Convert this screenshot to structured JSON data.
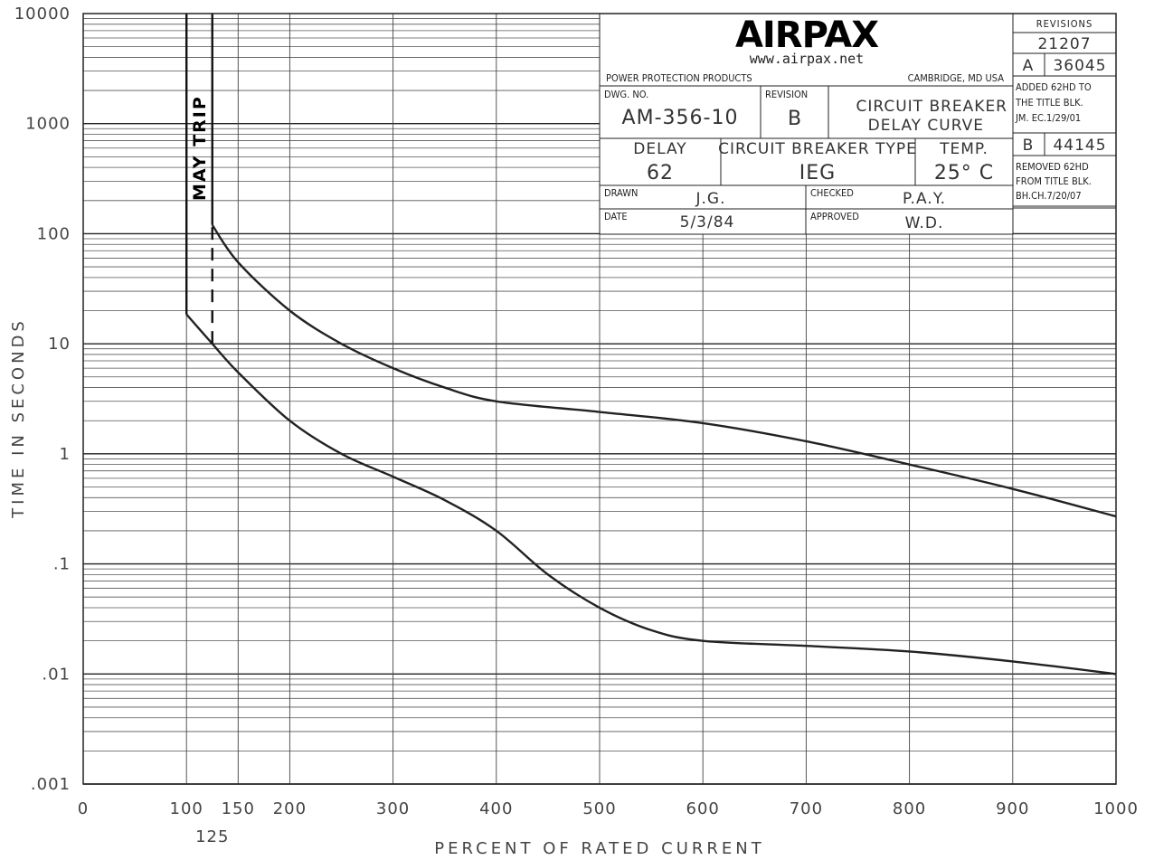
{
  "chart_data": {
    "type": "line",
    "xlabel": "PERCENT OF RATED CURRENT",
    "ylabel": "TIME IN SECONDS",
    "xlim": [
      0,
      1000
    ],
    "ylim": [
      0.001,
      10000
    ],
    "yscale": "log",
    "grid": true,
    "x_ticks": [
      "0",
      "100",
      "150",
      "200",
      "300",
      "400",
      "500",
      "600",
      "700",
      "800",
      "900",
      "1000"
    ],
    "x_tick_values": [
      0,
      100,
      150,
      200,
      300,
      400,
      500,
      600,
      700,
      800,
      900,
      1000
    ],
    "x_extra_tick_label": "125",
    "x_extra_tick_value": 125,
    "y_ticks": [
      "10000",
      "1000",
      "100",
      "10",
      "1",
      ".1",
      ".01",
      ".001"
    ],
    "y_tick_values": [
      10000,
      1000,
      100,
      10,
      1,
      0.1,
      0.01,
      0.001
    ],
    "annotation": "MAY TRIP",
    "series": [
      {
        "points": [
          [
            125,
            120
          ],
          [
            150,
            55
          ],
          [
            200,
            20
          ],
          [
            250,
            10
          ],
          [
            300,
            6
          ],
          [
            350,
            4
          ],
          [
            400,
            3
          ],
          [
            500,
            2.4
          ],
          [
            600,
            1.9
          ],
          [
            700,
            1.3
          ],
          [
            800,
            0.8
          ],
          [
            900,
            0.48
          ],
          [
            1000,
            0.27
          ]
        ]
      },
      {
        "points": [
          [
            100,
            18.5
          ],
          [
            125,
            10
          ],
          [
            150,
            5.5
          ],
          [
            200,
            2
          ],
          [
            250,
            1
          ],
          [
            300,
            0.62
          ],
          [
            350,
            0.38
          ],
          [
            400,
            0.2
          ],
          [
            450,
            0.08
          ],
          [
            500,
            0.04
          ],
          [
            550,
            0.025
          ],
          [
            600,
            0.02
          ],
          [
            700,
            0.018
          ],
          [
            800,
            0.016
          ],
          [
            900,
            0.013
          ],
          [
            1000,
            0.01
          ]
        ]
      }
    ],
    "may_trip_lines": [
      {
        "x": 100,
        "y_from": 18.5,
        "y_to": 10000
      },
      {
        "x": 125,
        "y_from": 120,
        "y_to": 10000
      }
    ],
    "dashed_segment": {
      "x": 125,
      "y_from": 10,
      "y_to": 120
    }
  },
  "title_block": {
    "logo": "AIRPAX",
    "url": "www.airpax.net",
    "company": "POWER PROTECTION PRODUCTS",
    "location": "CAMBRIDGE, MD USA",
    "dwg_no_label": "DWG. NO.",
    "dwg_no": "AM-356-10",
    "revision_label": "REVISION",
    "revision": "B",
    "title_line1": "CIRCUIT BREAKER",
    "title_line2": "DELAY CURVE",
    "delay_label": "DELAY",
    "delay": "62",
    "type_label": "CIRCUIT BREAKER TYPE",
    "type": "IEG",
    "temp_label": "TEMP.",
    "temp": "25° C",
    "drawn_label": "DRAWN",
    "drawn": "J.G.",
    "checked_label": "CHECKED",
    "checked": "P.A.Y.",
    "date_label": "DATE",
    "date": "5/3/84",
    "approved_label": "APPROVED",
    "approved": "W.D."
  },
  "revisions": {
    "header": "REVISIONS",
    "base": "21207",
    "rev_a_letter": "A",
    "rev_a_number": "36045",
    "rev_a_note_1": "ADDED 62HD TO",
    "rev_a_note_2": "THE TITLE BLK.",
    "rev_a_note_3": "JM. EC.1/29/01",
    "rev_b_letter": "B",
    "rev_b_number": "44145",
    "rev_b_note_1": "REMOVED 62HD",
    "rev_b_note_2": "FROM TITLE BLK.",
    "rev_b_note_3": "BH.CH.7/20/07"
  }
}
